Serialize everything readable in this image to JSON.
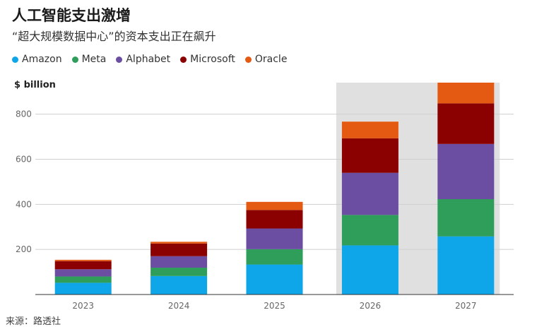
{
  "title": "人工智能支出激增",
  "subtitle": "“超大规模数据中心”的资本支出正在飙升",
  "unit_label": "$ billion",
  "source": "来源：路透社",
  "chart_data": {
    "type": "bar",
    "stacked": true,
    "categories": [
      "2023",
      "2024",
      "2025",
      "2026",
      "2027"
    ],
    "series": [
      {
        "name": "Amazon",
        "color": "#0ea5e9",
        "values": [
          52,
          82,
          133,
          218,
          258
        ]
      },
      {
        "name": "Meta",
        "color": "#2e9e5a",
        "values": [
          28,
          37,
          68,
          135,
          165
        ]
      },
      {
        "name": "Alphabet",
        "color": "#6b4ea1",
        "values": [
          32,
          51,
          92,
          187,
          245
        ]
      },
      {
        "name": "Microsoft",
        "color": "#8b0000",
        "values": [
          36,
          56,
          82,
          153,
          180
        ]
      },
      {
        "name": "Oracle",
        "color": "#e55a12",
        "values": [
          6,
          8,
          36,
          74,
          100
        ]
      }
    ],
    "ylim": [
      0,
      940
    ],
    "yticks": [
      200,
      400,
      600,
      800
    ],
    "highlighted_categories": [
      "2026",
      "2027"
    ],
    "grid": true,
    "legend_position": "top"
  }
}
